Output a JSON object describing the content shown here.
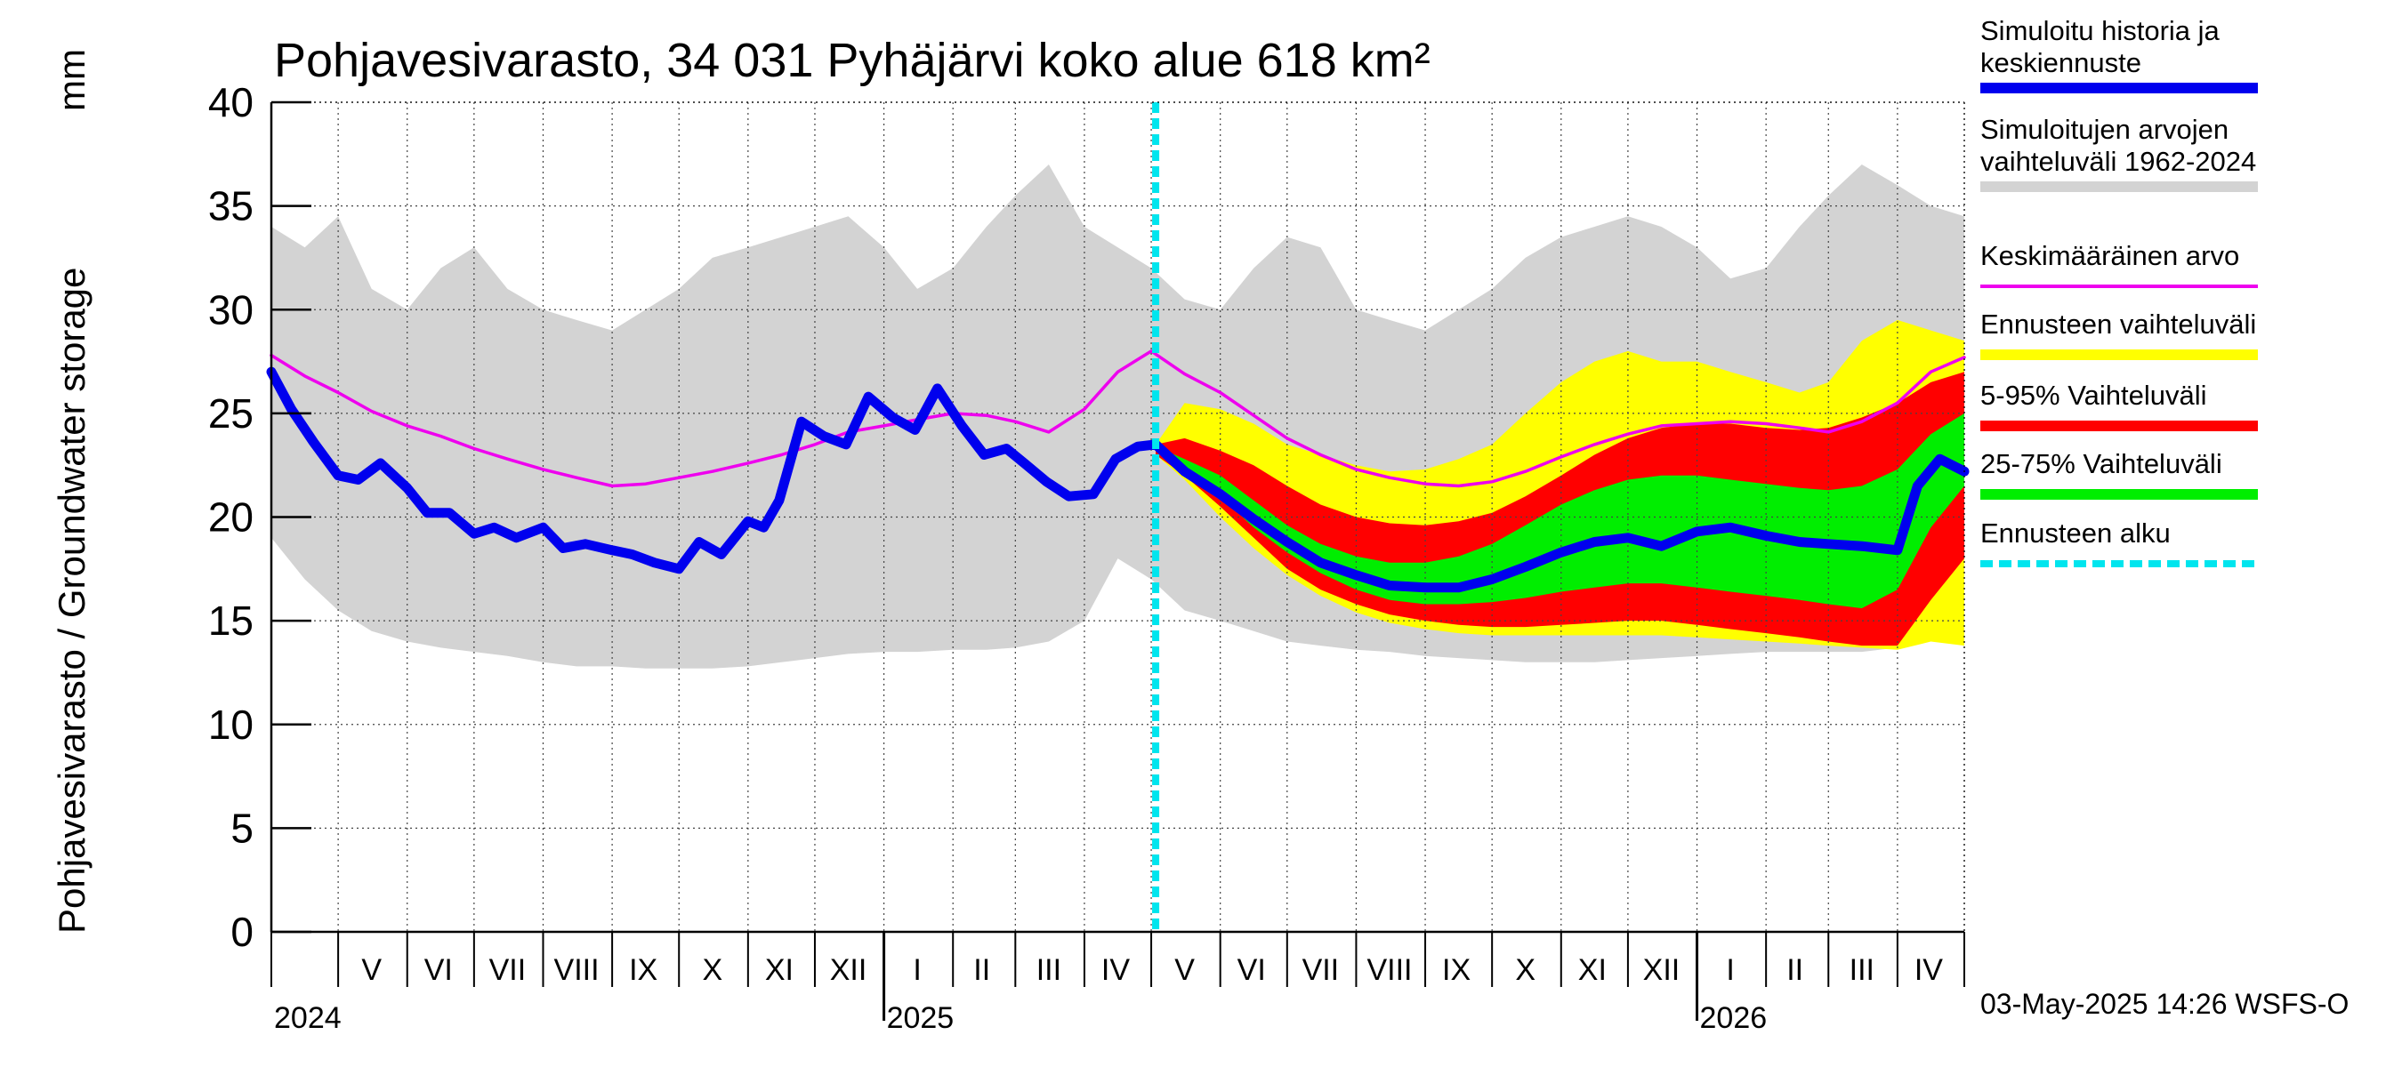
{
  "chart_data": {
    "type": "area",
    "title": "Pohjavesivarasto, 34 031 Pyhäjärvi koko alue 618 km²",
    "ylabel": "Pohjavesivarasto / Groundwater storage",
    "yunit": "mm",
    "ylim": [
      0,
      40
    ],
    "yticks": [
      "0",
      "5",
      "10",
      "15",
      "20",
      "25",
      "30",
      "35",
      "40"
    ],
    "xlim": [
      "2024-04-01",
      "2026-05-01"
    ],
    "grid": true,
    "legend_position": "right",
    "month_labels": [
      {
        "label": "V",
        "date": "2024-05-16"
      },
      {
        "label": "VI",
        "date": "2024-06-15"
      },
      {
        "label": "VII",
        "date": "2024-07-16"
      },
      {
        "label": "VIII",
        "date": "2024-08-16"
      },
      {
        "label": "IX",
        "date": "2024-09-15"
      },
      {
        "label": "X",
        "date": "2024-10-16"
      },
      {
        "label": "XI",
        "date": "2024-11-15"
      },
      {
        "label": "XII",
        "date": "2024-12-16"
      },
      {
        "label": "I",
        "date": "2025-01-16"
      },
      {
        "label": "II",
        "date": "2025-02-14"
      },
      {
        "label": "III",
        "date": "2025-03-16"
      },
      {
        "label": "IV",
        "date": "2025-04-15"
      },
      {
        "label": "V",
        "date": "2025-05-16"
      },
      {
        "label": "VI",
        "date": "2025-06-15"
      },
      {
        "label": "VII",
        "date": "2025-07-16"
      },
      {
        "label": "VIII",
        "date": "2025-08-16"
      },
      {
        "label": "IX",
        "date": "2025-09-15"
      },
      {
        "label": "X",
        "date": "2025-10-16"
      },
      {
        "label": "XI",
        "date": "2025-11-15"
      },
      {
        "label": "XII",
        "date": "2025-12-16"
      },
      {
        "label": "I",
        "date": "2026-01-16"
      },
      {
        "label": "II",
        "date": "2026-02-14"
      },
      {
        "label": "III",
        "date": "2026-03-16"
      },
      {
        "label": "IV",
        "date": "2026-04-15"
      }
    ],
    "year_labels": [
      {
        "label": "2024",
        "date": "2024-04-01"
      },
      {
        "label": "2025",
        "date": "2025-01-01"
      },
      {
        "label": "2026",
        "date": "2026-01-01"
      }
    ],
    "forecast_start": "2025-05-03",
    "colors": {
      "history": "#0000ee",
      "range": "#d3d3d3",
      "mean": "#ee00ee",
      "forecast_range": "#ffff00",
      "p5_95": "#ff0000",
      "p25_75": "#00ee00",
      "forecast_start": "#00e5ee"
    },
    "series": [
      {
        "name": "Simuloitujen arvojen vaihteluväli 1962-2024",
        "kind": "band",
        "x": [
          "2024-04-01",
          "2024-04-16",
          "2024-05-01",
          "2024-05-16",
          "2024-06-01",
          "2024-06-16",
          "2024-07-01",
          "2024-07-16",
          "2024-08-01",
          "2024-08-16",
          "2024-09-01",
          "2024-09-16",
          "2024-10-01",
          "2024-10-16",
          "2024-11-01",
          "2024-11-16",
          "2024-12-01",
          "2024-12-16",
          "2025-01-01",
          "2025-01-16",
          "2025-02-01",
          "2025-02-16",
          "2025-03-01",
          "2025-03-16",
          "2025-04-01",
          "2025-04-16",
          "2025-05-01",
          "2025-05-16",
          "2025-06-01",
          "2025-06-16",
          "2025-07-01",
          "2025-07-16",
          "2025-08-01",
          "2025-08-16",
          "2025-09-01",
          "2025-09-16",
          "2025-10-01",
          "2025-10-16",
          "2025-11-01",
          "2025-11-16",
          "2025-12-01",
          "2025-12-16",
          "2026-01-01",
          "2026-01-16",
          "2026-02-01",
          "2026-02-16",
          "2026-03-01",
          "2026-03-16",
          "2026-04-01",
          "2026-04-16",
          "2026-05-01"
        ],
        "low": [
          19,
          17,
          15.5,
          14.5,
          14,
          13.7,
          13.5,
          13.3,
          13,
          12.8,
          12.8,
          12.7,
          12.7,
          12.7,
          12.8,
          13,
          13.2,
          13.4,
          13.5,
          13.5,
          13.6,
          13.6,
          13.7,
          14,
          15,
          18,
          17,
          15.5,
          15,
          14.5,
          14,
          13.8,
          13.6,
          13.5,
          13.3,
          13.2,
          13.1,
          13,
          13,
          13,
          13.1,
          13.2,
          13.3,
          13.4,
          13.5,
          13.5,
          13.5,
          13.5,
          13.7,
          14.5,
          14
        ],
        "high": [
          34,
          33,
          34.5,
          31,
          30,
          32,
          33,
          31,
          30,
          29.5,
          29,
          30,
          31,
          32.5,
          33,
          33.5,
          34,
          34.5,
          33,
          31,
          32,
          34,
          35.5,
          37,
          34,
          33,
          32,
          30.5,
          30,
          32,
          33.5,
          33,
          30,
          29.5,
          29,
          30,
          31,
          32.5,
          33.5,
          34,
          34.5,
          34,
          33,
          31.5,
          32,
          34,
          35.5,
          37,
          36,
          35,
          34.5
        ]
      },
      {
        "name": "Ennusteen vaihteluväli",
        "kind": "band",
        "x": [
          "2025-05-03",
          "2025-05-16",
          "2025-06-01",
          "2025-06-16",
          "2025-07-01",
          "2025-07-16",
          "2025-08-01",
          "2025-08-16",
          "2025-09-01",
          "2025-09-16",
          "2025-10-01",
          "2025-10-16",
          "2025-11-01",
          "2025-11-16",
          "2025-12-01",
          "2025-12-16",
          "2026-01-01",
          "2026-01-16",
          "2026-02-01",
          "2026-02-16",
          "2026-03-01",
          "2026-03-16",
          "2026-04-01",
          "2026-04-16",
          "2026-05-01"
        ],
        "low": [
          23,
          21.8,
          20,
          18.5,
          17.2,
          16.2,
          15.4,
          14.9,
          14.6,
          14.4,
          14.3,
          14.3,
          14.3,
          14.3,
          14.3,
          14.3,
          14.2,
          14.1,
          14,
          13.9,
          13.8,
          13.7,
          13.6,
          14,
          13.8
        ],
        "high": [
          23.5,
          25.5,
          25.2,
          24.5,
          23.5,
          23,
          22.5,
          22.2,
          22.3,
          22.8,
          23.5,
          25,
          26.5,
          27.5,
          28,
          27.5,
          27.5,
          27,
          26.5,
          26,
          26.5,
          28.5,
          29.5,
          29,
          28.5
        ]
      },
      {
        "name": "5-95% Vaihteluväli",
        "kind": "band",
        "x": [
          "2025-05-03",
          "2025-05-16",
          "2025-06-01",
          "2025-06-16",
          "2025-07-01",
          "2025-07-16",
          "2025-08-01",
          "2025-08-16",
          "2025-09-01",
          "2025-09-16",
          "2025-10-01",
          "2025-10-16",
          "2025-11-01",
          "2025-11-16",
          "2025-12-01",
          "2025-12-16",
          "2026-01-01",
          "2026-01-16",
          "2026-02-01",
          "2026-02-16",
          "2026-03-01",
          "2026-03-16",
          "2026-04-01",
          "2026-04-16",
          "2026-05-01"
        ],
        "low": [
          23,
          22,
          20.5,
          19,
          17.5,
          16.5,
          15.8,
          15.3,
          15,
          14.8,
          14.7,
          14.7,
          14.8,
          14.9,
          15,
          15,
          14.8,
          14.6,
          14.4,
          14.2,
          14,
          13.8,
          13.8,
          16,
          18
        ],
        "high": [
          23.5,
          23.8,
          23.2,
          22.5,
          21.5,
          20.6,
          20,
          19.7,
          19.6,
          19.8,
          20.2,
          21,
          22,
          23,
          23.8,
          24.3,
          24.5,
          24.5,
          24.3,
          24.2,
          24.3,
          24.8,
          25.5,
          26.5,
          27
        ]
      },
      {
        "name": "25-75% Vaihteluväli",
        "kind": "band",
        "x": [
          "2025-05-03",
          "2025-05-16",
          "2025-06-01",
          "2025-06-16",
          "2025-07-01",
          "2025-07-16",
          "2025-08-01",
          "2025-08-16",
          "2025-09-01",
          "2025-09-16",
          "2025-10-01",
          "2025-10-16",
          "2025-11-01",
          "2025-11-16",
          "2025-12-01",
          "2025-12-16",
          "2026-01-01",
          "2026-01-16",
          "2026-02-01",
          "2026-02-16",
          "2026-03-01",
          "2026-03-16",
          "2026-04-01",
          "2026-04-16",
          "2026-05-01"
        ],
        "low": [
          23.2,
          22.2,
          21,
          19.5,
          18.3,
          17.3,
          16.5,
          16,
          15.8,
          15.8,
          15.9,
          16.1,
          16.4,
          16.6,
          16.8,
          16.8,
          16.6,
          16.4,
          16.2,
          16,
          15.8,
          15.6,
          16.5,
          19.5,
          21.5
        ],
        "high": [
          23.4,
          22.8,
          22,
          20.8,
          19.6,
          18.7,
          18.1,
          17.8,
          17.8,
          18.1,
          18.7,
          19.6,
          20.6,
          21.3,
          21.8,
          22,
          22,
          21.8,
          21.6,
          21.4,
          21.3,
          21.5,
          22.3,
          24,
          25
        ]
      },
      {
        "name": "Keskimääräinen arvo",
        "kind": "line",
        "x": [
          "2024-04-01",
          "2024-04-16",
          "2024-05-01",
          "2024-05-16",
          "2024-06-01",
          "2024-06-16",
          "2024-07-01",
          "2024-07-16",
          "2024-08-01",
          "2024-08-16",
          "2024-09-01",
          "2024-09-16",
          "2024-10-01",
          "2024-10-16",
          "2024-11-01",
          "2024-11-16",
          "2024-12-01",
          "2024-12-16",
          "2025-01-01",
          "2025-01-16",
          "2025-02-01",
          "2025-02-16",
          "2025-03-01",
          "2025-03-16",
          "2025-04-01",
          "2025-04-16",
          "2025-05-01",
          "2025-05-16",
          "2025-06-01",
          "2025-06-16",
          "2025-07-01",
          "2025-07-16",
          "2025-08-01",
          "2025-08-16",
          "2025-09-01",
          "2025-09-16",
          "2025-10-01",
          "2025-10-16",
          "2025-11-01",
          "2025-11-16",
          "2025-12-01",
          "2025-12-16",
          "2026-01-01",
          "2026-01-16",
          "2026-02-01",
          "2026-02-16",
          "2026-03-01",
          "2026-03-16",
          "2026-04-01",
          "2026-04-16",
          "2026-05-01"
        ],
        "y": [
          27.8,
          26.8,
          26,
          25.1,
          24.4,
          23.9,
          23.3,
          22.8,
          22.3,
          21.9,
          21.5,
          21.6,
          21.9,
          22.2,
          22.6,
          23,
          23.5,
          24.1,
          24.4,
          24.7,
          25,
          24.9,
          24.6,
          24.1,
          25.2,
          27,
          28,
          26.9,
          26,
          24.9,
          23.8,
          23,
          22.3,
          21.9,
          21.6,
          21.5,
          21.7,
          22.2,
          22.9,
          23.5,
          24,
          24.4,
          24.5,
          24.6,
          24.5,
          24.3,
          24.1,
          24.6,
          25.5,
          27,
          27.7
        ]
      },
      {
        "name": "Simuloitu historia ja keskiennuste",
        "kind": "line",
        "x": [
          "2024-04-01",
          "2024-04-10",
          "2024-04-20",
          "2024-05-01",
          "2024-05-10",
          "2024-05-20",
          "2024-06-01",
          "2024-06-10",
          "2024-06-20",
          "2024-07-01",
          "2024-07-10",
          "2024-07-20",
          "2024-08-01",
          "2024-08-10",
          "2024-08-20",
          "2024-09-01",
          "2024-09-10",
          "2024-09-20",
          "2024-10-01",
          "2024-10-10",
          "2024-10-20",
          "2024-11-01",
          "2024-11-08",
          "2024-11-15",
          "2024-11-25",
          "2024-12-05",
          "2024-12-15",
          "2024-12-25",
          "2025-01-05",
          "2025-01-15",
          "2025-01-25",
          "2025-02-05",
          "2025-02-15",
          "2025-02-25",
          "2025-03-05",
          "2025-03-15",
          "2025-03-25",
          "2025-04-05",
          "2025-04-15",
          "2025-04-25",
          "2025-05-03",
          "2025-05-16",
          "2025-06-01",
          "2025-06-16",
          "2025-07-01",
          "2025-07-16",
          "2025-08-01",
          "2025-08-16",
          "2025-09-01",
          "2025-09-16",
          "2025-10-01",
          "2025-10-16",
          "2025-11-01",
          "2025-11-16",
          "2025-12-01",
          "2025-12-16",
          "2026-01-01",
          "2026-01-16",
          "2026-02-01",
          "2026-02-16",
          "2026-03-01",
          "2026-03-16",
          "2026-04-01",
          "2026-04-10",
          "2026-04-20",
          "2026-05-01"
        ],
        "y": [
          27,
          25.2,
          23.6,
          22,
          21.8,
          22.6,
          21.4,
          20.2,
          20.2,
          19.2,
          19.5,
          19,
          19.5,
          18.5,
          18.7,
          18.4,
          18.2,
          17.8,
          17.5,
          18.8,
          18.2,
          19.8,
          19.5,
          20.8,
          24.6,
          23.9,
          23.5,
          25.8,
          24.8,
          24.2,
          26.2,
          24.4,
          23,
          23.3,
          22.6,
          21.7,
          21,
          21.1,
          22.8,
          23.4,
          23.5,
          22.2,
          21.1,
          19.9,
          18.8,
          17.8,
          17.2,
          16.7,
          16.6,
          16.6,
          17,
          17.6,
          18.3,
          18.8,
          19,
          18.6,
          19.3,
          19.5,
          19.1,
          18.8,
          18.7,
          18.6,
          18.4,
          21.5,
          22.8,
          22.2
        ]
      }
    ]
  },
  "legend": [
    {
      "label": "Simuloitu historia ja keskiennuste",
      "color": "#0000ee",
      "style": "thick"
    },
    {
      "label": "Simuloitujen arvojen vaihteluväli 1962-2024",
      "color": "#d3d3d3",
      "style": "thick"
    },
    {
      "label": "Keskimääräinen arvo",
      "color": "#ee00ee",
      "style": "thin"
    },
    {
      "label": "Ennusteen vaihteluväli",
      "color": "#ffff00",
      "style": "thick"
    },
    {
      "label": "5-95% Vaihteluväli",
      "color": "#ff0000",
      "style": "thick"
    },
    {
      "label": "25-75% Vaihteluväli",
      "color": "#00ee00",
      "style": "thick"
    },
    {
      "label": "Ennusteen alku",
      "color": "#00e5ee",
      "style": "dashed"
    }
  ],
  "timestamp": "03-May-2025 14:26 WSFS-O"
}
